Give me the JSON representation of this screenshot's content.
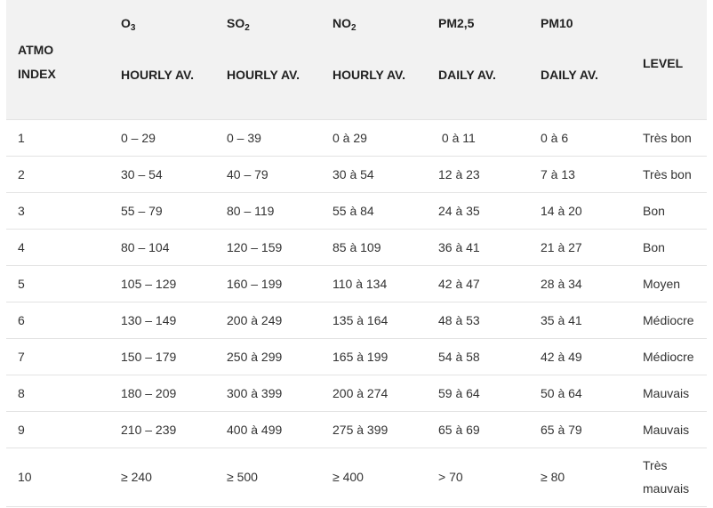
{
  "table": {
    "headers": [
      {
        "top": "",
        "bottom": "",
        "atmo_line1": "ATMO",
        "atmo_line2": "INDEX"
      },
      {
        "pollutant_main": "O",
        "pollutant_sub": "3",
        "period": "HOURLY AV."
      },
      {
        "pollutant_main": "SO",
        "pollutant_sub": "2",
        "period": "HOURLY AV."
      },
      {
        "pollutant_main": "NO",
        "pollutant_sub": "2",
        "period": "HOURLY AV."
      },
      {
        "pollutant_main": "PM2,5",
        "pollutant_sub": "",
        "period": "DAILY AV."
      },
      {
        "pollutant_main": "PM10",
        "pollutant_sub": "",
        "period": "DAILY AV."
      },
      {
        "level": "LEVEL"
      }
    ],
    "rows": [
      [
        "1",
        "0 –  29",
        "0 –  39",
        "0 à  29",
        " 0 à 11",
        "0 à 6",
        "Très bon"
      ],
      [
        "2",
        "30 –  54",
        "40 – 79",
        "30 à 54",
        "12 à 23",
        "7 à 13",
        "Très bon"
      ],
      [
        "3",
        "55 –  79",
        "80 – 119",
        "55 à 84",
        "24 à 35",
        "14 à 20",
        "Bon"
      ],
      [
        "4",
        "80 – 104",
        "120 – 159",
        "85 à 109",
        "36 à 41",
        "21 à 27",
        "Bon"
      ],
      [
        "5",
        "105 – 129",
        "160 – 199",
        "110 à 134",
        "42 à 47",
        "28 à 34",
        "Moyen"
      ],
      [
        "6",
        "130 – 149",
        "200 à 249",
        "135 à 164",
        "48 à 53",
        "35 à 41",
        "Médiocre"
      ],
      [
        "7",
        "150 – 179",
        "250 à 299",
        "165 à 199",
        "54 à 58",
        "42 à 49",
        "Médiocre"
      ],
      [
        "8",
        "180 – 209",
        "300 à 399",
        "200 à 274",
        "59 à 64",
        "50 à 64",
        "Mauvais"
      ],
      [
        "9",
        "210 – 239",
        "400 à 499",
        "275 à 399",
        "65 à 69",
        "65 à 79",
        "Mauvais"
      ],
      [
        "10",
        "≥ 240",
        "≥ 500",
        "≥ 400",
        "> 70",
        "≥ 80",
        "Très mauvais"
      ]
    ]
  }
}
